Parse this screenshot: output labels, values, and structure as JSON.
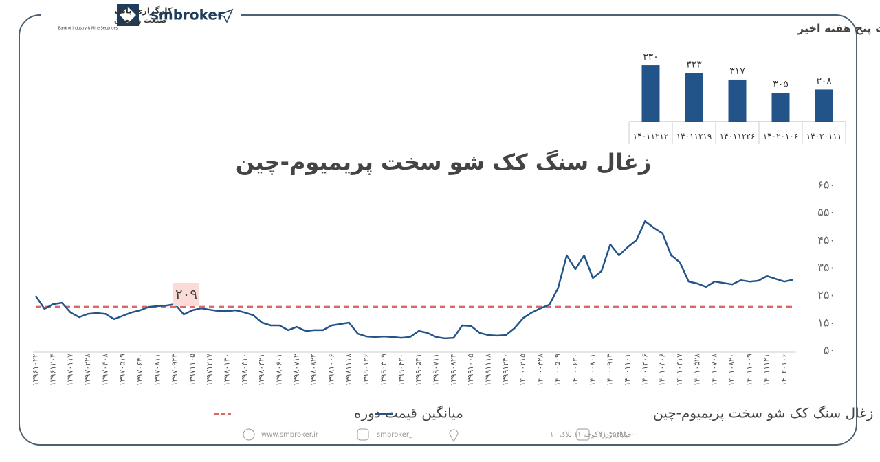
{
  "header": {
    "brand": "smbroker",
    "logo_line1": "کارگزاری بانک",
    "logo_line2": "صنعت و معدن",
    "logo_line3": "Bank of Industry & Mine Securities"
  },
  "footer": {
    "website": "www.smbroker.ir",
    "instagram": "smbroker_",
    "address": "خیابان وزرا کوچه ۱۱ پلاک ۱۰",
    "phone": "۰۲۱-۴۵۴۸۱۰۰۰"
  },
  "chart_data": [
    {
      "type": "bar",
      "title": "تغییرات پنج هفته اخیر",
      "categories": [
        "۱۴۰۱۱۲۱۲",
        "۱۴۰۱۱۲۱۹",
        "۱۴۰۱۱۲۲۶",
        "۱۴۰۲۰۱۰۶",
        "۱۴۰۲۰۱۱۱"
      ],
      "values": [
        330,
        323,
        317,
        305,
        308
      ],
      "value_labels": [
        "۳۳۰",
        "۳۲۳",
        "۳۱۷",
        "۳۰۵",
        "۳۰۸"
      ],
      "color": "#22548a",
      "ylim": [
        279,
        340
      ]
    },
    {
      "type": "line",
      "title": "زغال سنگ کک شو سخت پریمیوم-چین",
      "categories": [
        "۱۳۹۶۱۰۲۲",
        null,
        "۱۳۹۶۱۲۰۴",
        null,
        "۱۳۹۷۰۱۱۷",
        null,
        "۱۳۹۷۰۲۲۸",
        null,
        "۱۳۹۷۰۴۰۸",
        null,
        "۱۳۹۷۰۵۱۹",
        null,
        "۱۳۹۷۰۶۳۰",
        null,
        "۱۳۹۷۰۸۱۱",
        null,
        "۱۳۹۷۰۹۲۳",
        null,
        "۱۳۹۷۱۱۰۵",
        null,
        "۱۳۹۷۱۲۱۷",
        null,
        "۱۳۹۸۰۱۳۰",
        null,
        "۱۳۹۸۰۳۱۰",
        null,
        "۱۳۹۸۰۴۲۱",
        null,
        "۱۳۹۸۰۶۰۱",
        null,
        "۱۳۹۸۰۷۱۲",
        null,
        "۱۳۹۸۰۸۲۴",
        null,
        "۱۳۹۸۱۰۰۶",
        null,
        "۱۳۹۸۱۱۱۸",
        null,
        "۱۳۹۹۰۱۲۶",
        null,
        "۱۳۹۹۰۳۰۹",
        null,
        "۱۳۹۹۰۴۲۰",
        null,
        "۱۳۹۹۰۵۳۱",
        null,
        "۱۳۹۹۰۷۱۱",
        null,
        "۱۳۹۹۰۸۲۳",
        null,
        "۱۳۹۹۱۰۰۵",
        null,
        "۱۳۹۹۱۱۱۸",
        null,
        "۱۳۹۹۱۲۳۰",
        null,
        "۱۴۰۰۰۲۱۵",
        null,
        "۱۴۰۰۰۳۲۸",
        null,
        "۱۴۰۰۰۵۰۹",
        null,
        "۱۴۰۰۰۶۲۰",
        null,
        "۱۴۰۰۰۸۰۱",
        null,
        "۱۴۰۰۰۹۱۳",
        null,
        "۱۴۰۰۱۱۰۱",
        null,
        "۱۴۰۰۱۲۰۶",
        null,
        "۱۴۰۱۰۳۰۶",
        null,
        "۱۴۰۱۰۴۱۷",
        null,
        "۱۴۰۱۰۵۲۸",
        null,
        "۱۴۰۱۰۷۰۸",
        null,
        "۱۴۰۱۰۸۲۰",
        null,
        "۱۴۰۱۱۰۰۹",
        null,
        "۱۴۰۱۱۱۲۱",
        null,
        "۱۴۰۲۰۱۰۶",
        null
      ],
      "series": [
        {
          "name": "زغال سنگ کک شو سخت پریمیوم-چین",
          "color": "#22548a",
          "values": [
            249,
            202,
            219,
            224,
            189,
            172,
            184,
            187,
            184,
            165,
            177,
            189,
            197,
            209,
            212,
            214,
            219,
            182,
            197,
            204,
            199,
            194,
            194,
            197,
            189,
            179,
            152,
            142,
            142,
            125,
            137,
            122,
            125,
            125,
            142,
            147,
            152,
            112,
            102,
            100,
            102,
            100,
            97,
            100,
            122,
            115,
            100,
            95,
            97,
            142,
            140,
            115,
            107,
            105,
            107,
            132,
            169,
            189,
            204,
            217,
            277,
            396,
            346,
            396,
            314,
            339,
            436,
            396,
            426,
            451,
            520,
            496,
            476,
            396,
            371,
            301,
            294,
            282,
            301,
            296,
            291,
            306,
            301,
            304,
            321,
            311,
            301,
            308
          ]
        }
      ],
      "average": {
        "name": "میانگین قیمت دوره",
        "value": 209,
        "label": "۲۰۹",
        "color": "#e06666"
      },
      "ylim": [
        50,
        650
      ],
      "yticks": [
        {
          "value": 650,
          "label": "۶۵۰"
        },
        {
          "value": 550,
          "label": "۵۵۰"
        },
        {
          "value": 450,
          "label": "۴۵۰"
        },
        {
          "value": 350,
          "label": "۳۵۰"
        },
        {
          "value": 250,
          "label": "۲۵۰"
        },
        {
          "value": 150,
          "label": "۱۵۰"
        },
        {
          "value": 50,
          "label": "۵۰"
        }
      ]
    }
  ]
}
